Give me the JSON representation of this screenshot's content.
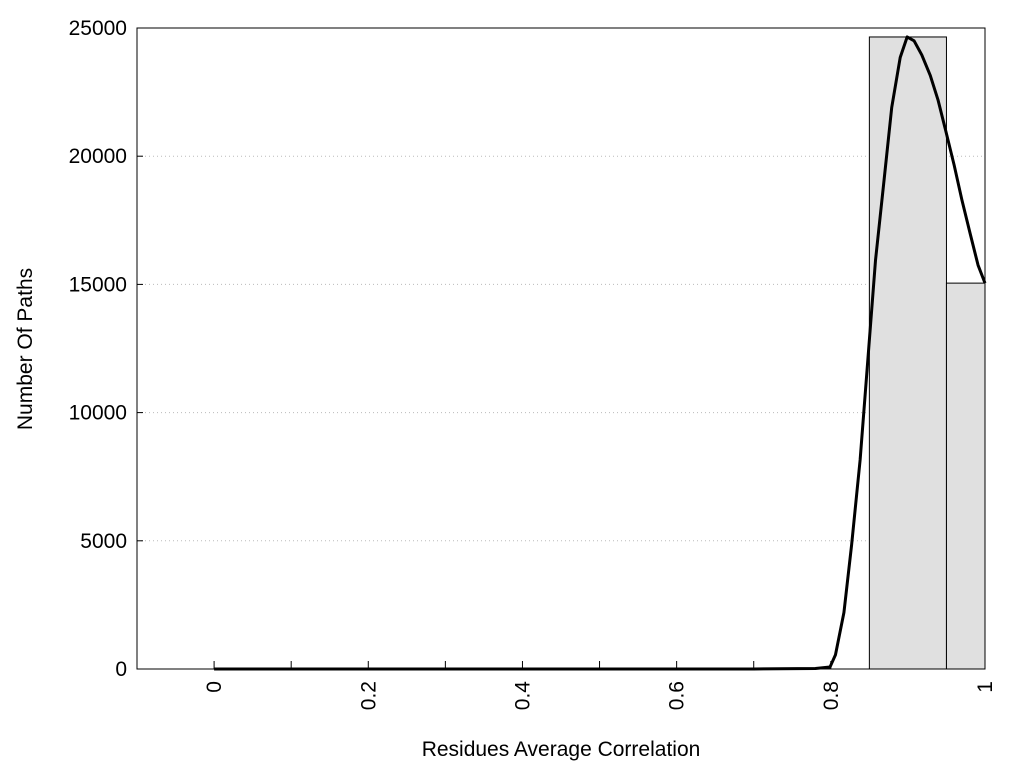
{
  "chart_data": {
    "type": "histogram",
    "xlabel": "Residues Average Correlation",
    "ylabel": "Number Of Paths",
    "bins": [
      0.85,
      0.95,
      1.0
    ],
    "values": [
      24650,
      15050
    ],
    "color": "#e0e0e0",
    "curve": {
      "x": [
        0,
        0.7,
        0.78,
        0.799,
        0.806,
        0.817,
        0.827,
        0.838,
        0.848,
        0.858,
        0.869,
        0.879,
        0.89,
        0.899,
        0.908,
        0.918,
        0.929,
        0.939,
        0.949,
        0.96,
        0.97,
        0.981,
        0.991,
        1.0
      ],
      "values": [
        0,
        0,
        20,
        80,
        550,
        2200,
        4850,
        8150,
        12050,
        15950,
        19050,
        21900,
        23850,
        24650,
        24500,
        23950,
        23150,
        22200,
        21000,
        19650,
        18300,
        16950,
        15750,
        15050
      ],
      "color": "#000000"
    },
    "xlim": [
      -0.1,
      1
    ],
    "xticks": [
      0,
      0.2,
      0.4,
      0.6,
      0.8,
      1
    ],
    "xminor_ticks": [
      0.1,
      0.3,
      0.5,
      0.7,
      0.9
    ],
    "ylim": [
      0,
      25000
    ],
    "yticks": [
      0,
      5000,
      10000,
      15000,
      20000,
      25000
    ],
    "grid": true
  }
}
